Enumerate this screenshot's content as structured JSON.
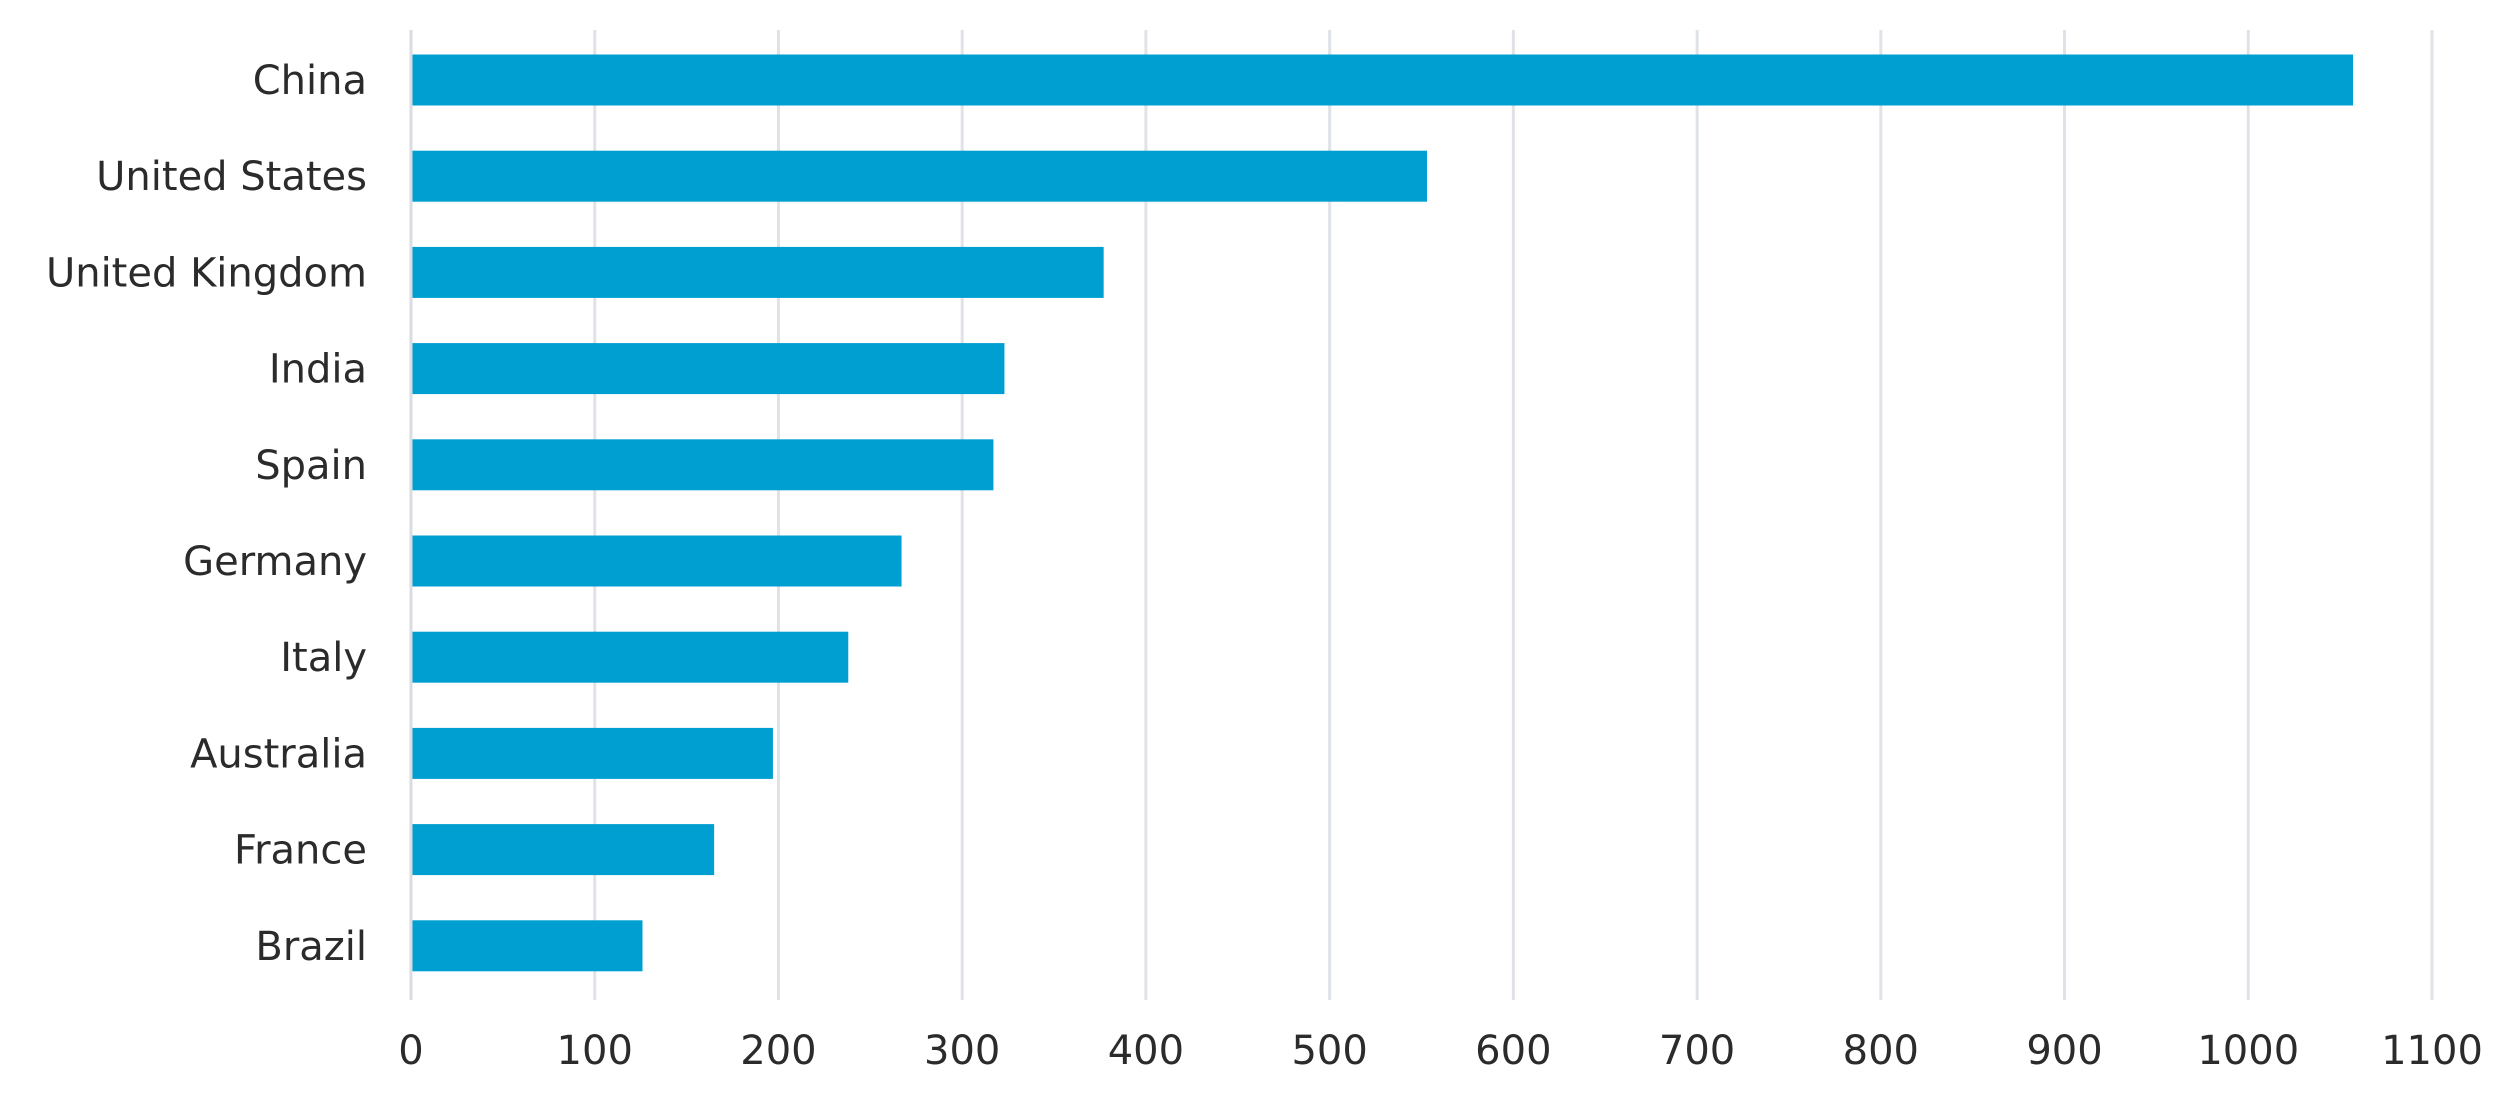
{
  "chart_data": {
    "type": "bar",
    "orientation": "horizontal",
    "title": "",
    "xlabel": "",
    "ylabel": "",
    "categories": [
      "China",
      "United States",
      "United Kingdom",
      "India",
      "Spain",
      "Germany",
      "Italy",
      "Australia",
      "France",
      "Brazil"
    ],
    "values": [
      1057,
      553,
      377,
      323,
      317,
      267,
      238,
      197,
      165,
      126
    ],
    "xlim": [
      0,
      1100
    ],
    "x_ticks": [
      "0",
      "100",
      "200",
      "300",
      "400",
      "500",
      "600",
      "700",
      "800",
      "900",
      "1000",
      "1100"
    ],
    "grid": true,
    "legend": "none",
    "bar_color": "#009fd1",
    "grid_color": "#dfe3e8"
  }
}
